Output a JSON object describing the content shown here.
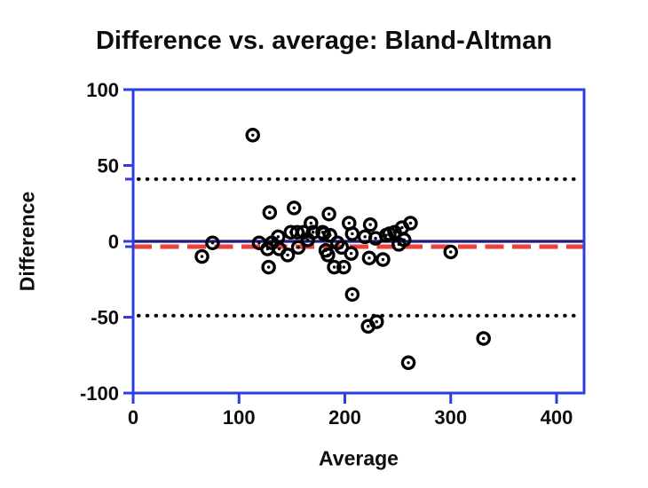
{
  "chart_data": {
    "type": "scatter",
    "title": "Difference vs. average: Bland-Altman",
    "xlabel": "Average",
    "ylabel": "Difference",
    "xlim": [
      0,
      426
    ],
    "ylim": [
      -100,
      100
    ],
    "x_ticks": [
      0,
      100,
      200,
      300,
      400
    ],
    "y_ticks": [
      100,
      50,
      0,
      -50,
      -100
    ],
    "grid": false,
    "legend": "none",
    "reference_lines": {
      "zero_line": 0,
      "mean_difference": -3.5,
      "upper_limit_of_agreement": 41,
      "lower_limit_of_agreement": -49
    },
    "points": [
      [
        113,
        70
      ],
      [
        129,
        19
      ],
      [
        152,
        22
      ],
      [
        185,
        18
      ],
      [
        168,
        12
      ],
      [
        204,
        12
      ],
      [
        224,
        11
      ],
      [
        262,
        12
      ],
      [
        254,
        9
      ],
      [
        247,
        6
      ],
      [
        242,
        5
      ],
      [
        239,
        4
      ],
      [
        149,
        6
      ],
      [
        155,
        6
      ],
      [
        161,
        6
      ],
      [
        170,
        6
      ],
      [
        179,
        6
      ],
      [
        186,
        4
      ],
      [
        180,
        5
      ],
      [
        165,
        1
      ],
      [
        137,
        3
      ],
      [
        131,
        -1
      ],
      [
        119,
        -1
      ],
      [
        127,
        -5
      ],
      [
        138,
        -5
      ],
      [
        156,
        -4
      ],
      [
        146,
        -9
      ],
      [
        193,
        -1
      ],
      [
        197,
        -4
      ],
      [
        182,
        -6
      ],
      [
        184,
        -9
      ],
      [
        207,
        5
      ],
      [
        219,
        3
      ],
      [
        229,
        2
      ],
      [
        251,
        -2
      ],
      [
        256,
        1
      ],
      [
        206,
        -8
      ],
      [
        223,
        -11
      ],
      [
        236,
        -12
      ],
      [
        190,
        -17
      ],
      [
        199,
        -17
      ],
      [
        128,
        -17
      ],
      [
        65,
        -10
      ],
      [
        75,
        -1
      ],
      [
        300,
        -7
      ],
      [
        207,
        -35
      ],
      [
        222,
        -56
      ],
      [
        230,
        -53
      ],
      [
        260,
        -80
      ],
      [
        331,
        -64
      ]
    ],
    "colors": {
      "frame_and_ticks": "#2e3ce2",
      "zero_line": "#1a1a7e",
      "mean_line": "#e8413e",
      "limit_lines": "#000000",
      "marker": "#000000",
      "background": "#ffffff"
    }
  }
}
